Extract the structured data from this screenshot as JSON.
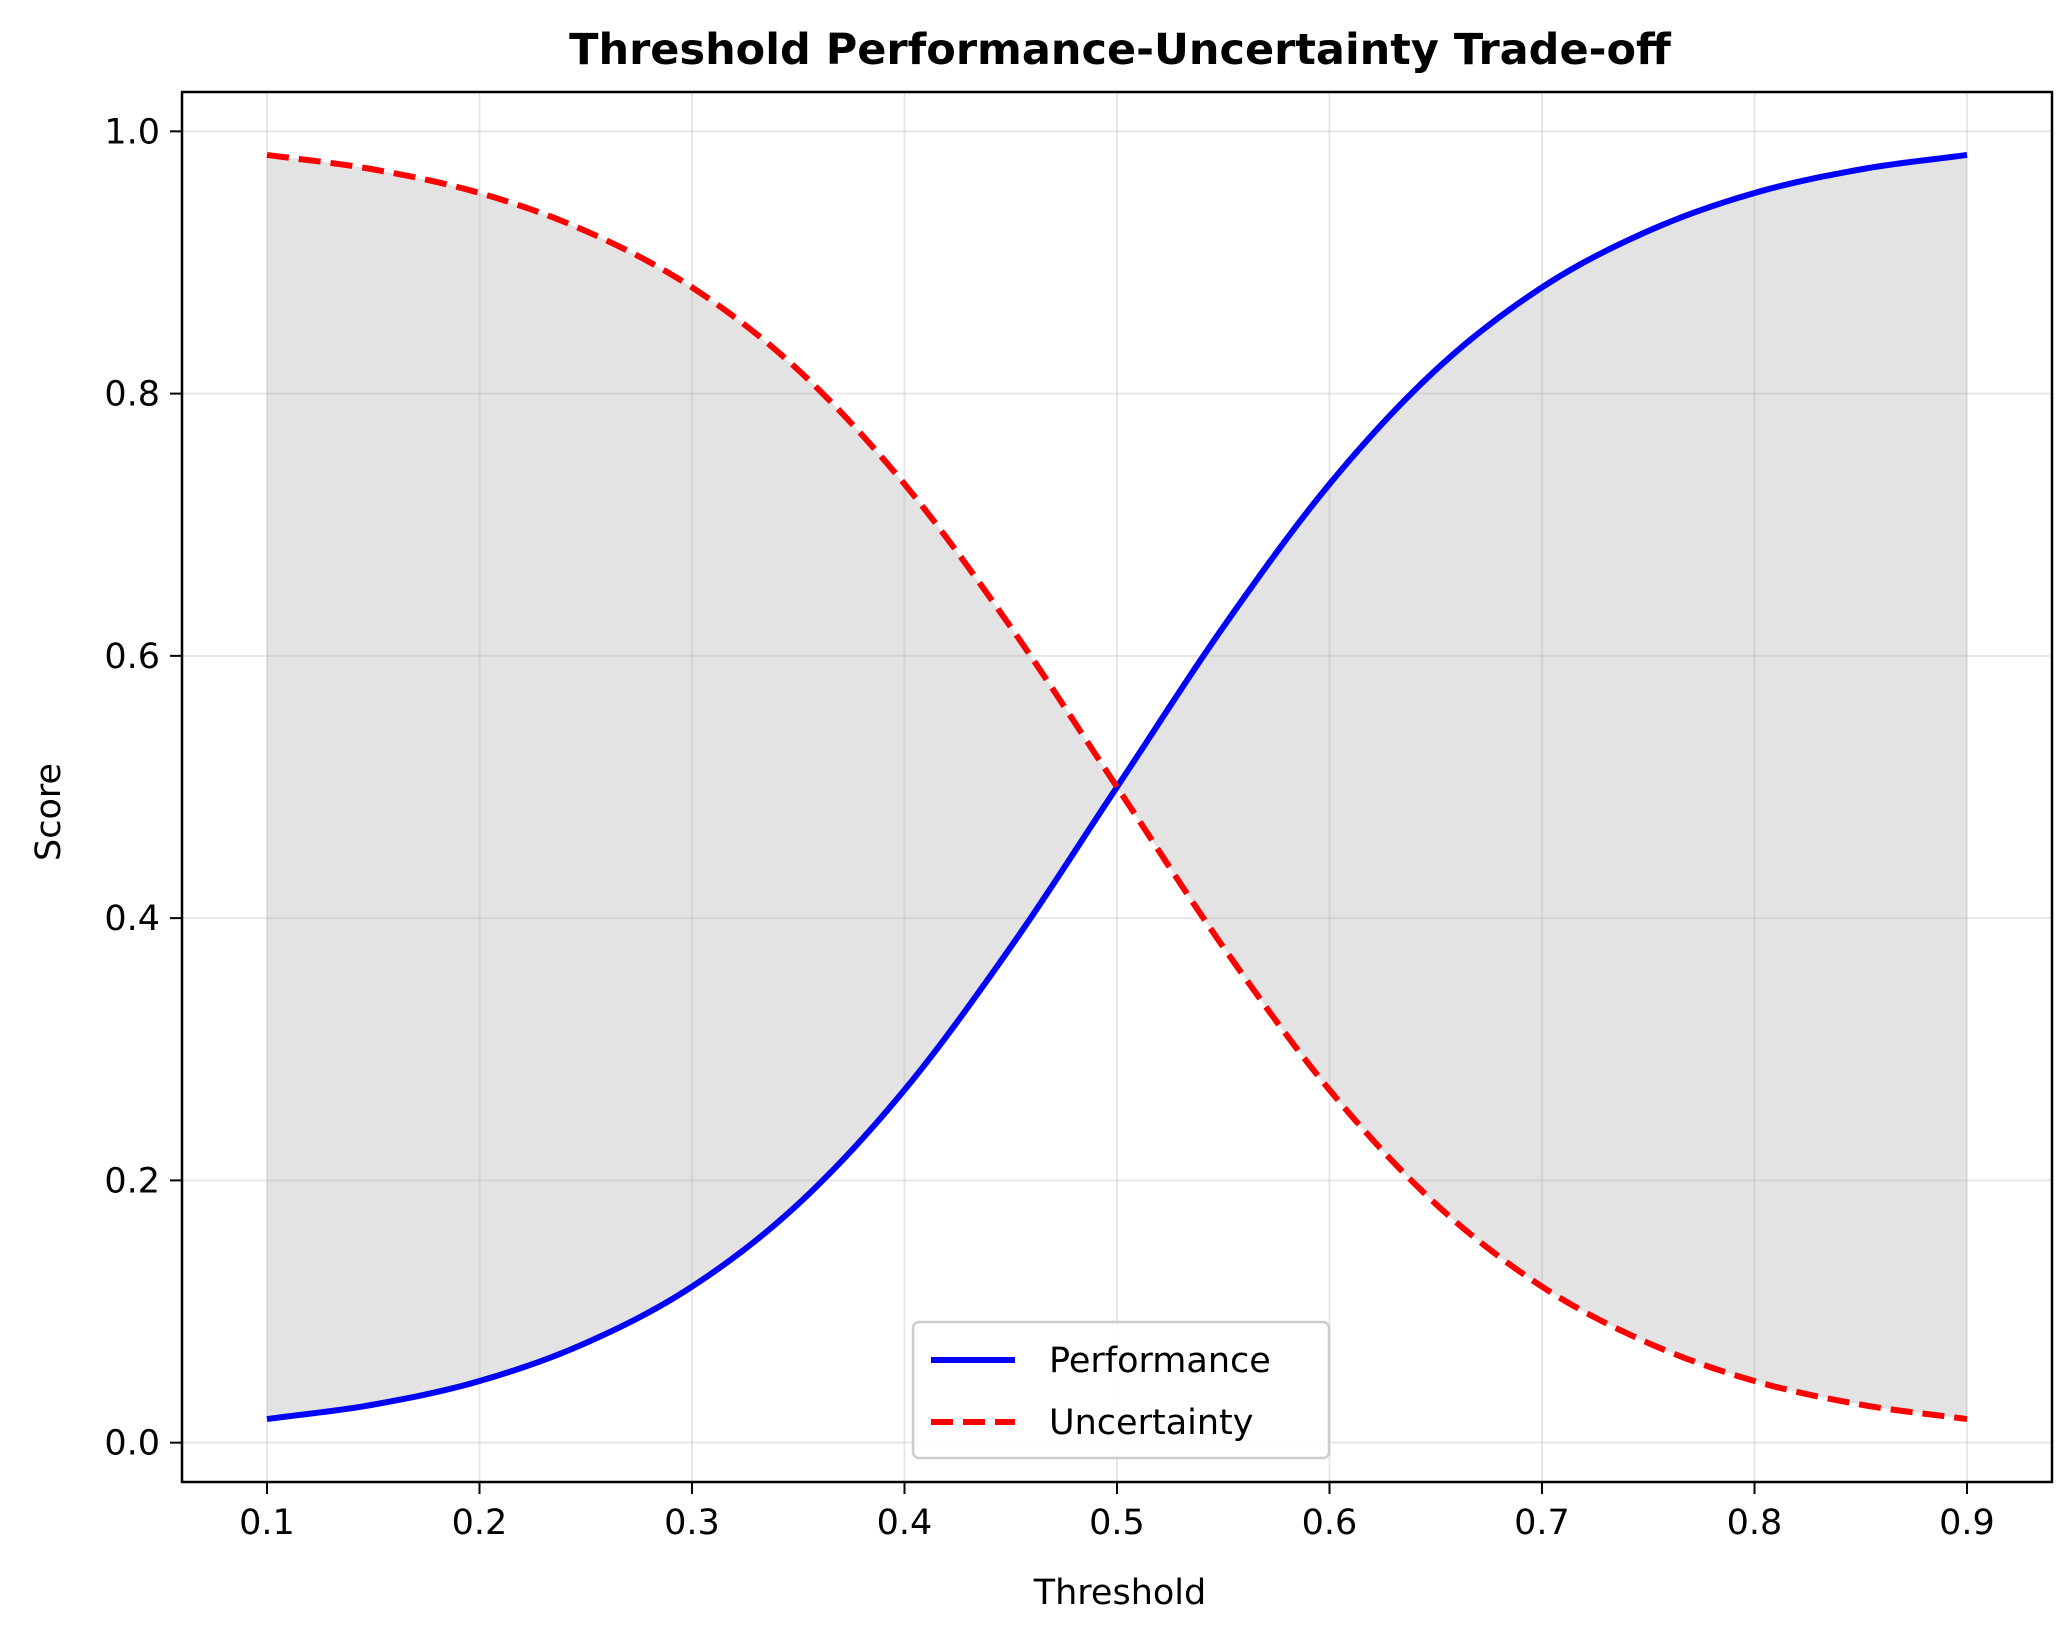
{
  "chart_data": {
    "type": "line",
    "title": "Threshold Performance-Uncertainty Trade-off",
    "xlabel": "Threshold",
    "ylabel": "Score",
    "xlim": [
      0.06,
      0.94
    ],
    "ylim": [
      -0.03,
      1.03
    ],
    "x_ticks": [
      0.1,
      0.2,
      0.3,
      0.4,
      0.5,
      0.6,
      0.7,
      0.8,
      0.9
    ],
    "x_tick_labels": [
      "0.1",
      "0.2",
      "0.3",
      "0.4",
      "0.5",
      "0.6",
      "0.7",
      "0.8",
      "0.9"
    ],
    "y_ticks": [
      0.0,
      0.2,
      0.4,
      0.6,
      0.8,
      1.0
    ],
    "y_tick_labels": [
      "0.0",
      "0.2",
      "0.4",
      "0.6",
      "0.8",
      "1.0"
    ],
    "grid": true,
    "legend_position": "bottom-center",
    "fill_between": true,
    "fill_color": "#e3e3e3",
    "x": [
      0.1,
      0.15,
      0.2,
      0.25,
      0.3,
      0.35,
      0.4,
      0.45,
      0.5,
      0.55,
      0.6,
      0.65,
      0.7,
      0.75,
      0.8,
      0.85,
      0.9
    ],
    "series": [
      {
        "name": "Performance",
        "color": "#0000ff",
        "style": "solid",
        "values": [
          0.018,
          0.029,
          0.047,
          0.076,
          0.119,
          0.182,
          0.269,
          0.378,
          0.5,
          0.622,
          0.731,
          0.818,
          0.881,
          0.924,
          0.953,
          0.971,
          0.982
        ]
      },
      {
        "name": "Uncertainty",
        "color": "#ff0000",
        "style": "dashed",
        "values": [
          0.982,
          0.971,
          0.953,
          0.924,
          0.881,
          0.818,
          0.731,
          0.622,
          0.5,
          0.378,
          0.269,
          0.182,
          0.119,
          0.076,
          0.047,
          0.029,
          0.018
        ]
      }
    ]
  }
}
